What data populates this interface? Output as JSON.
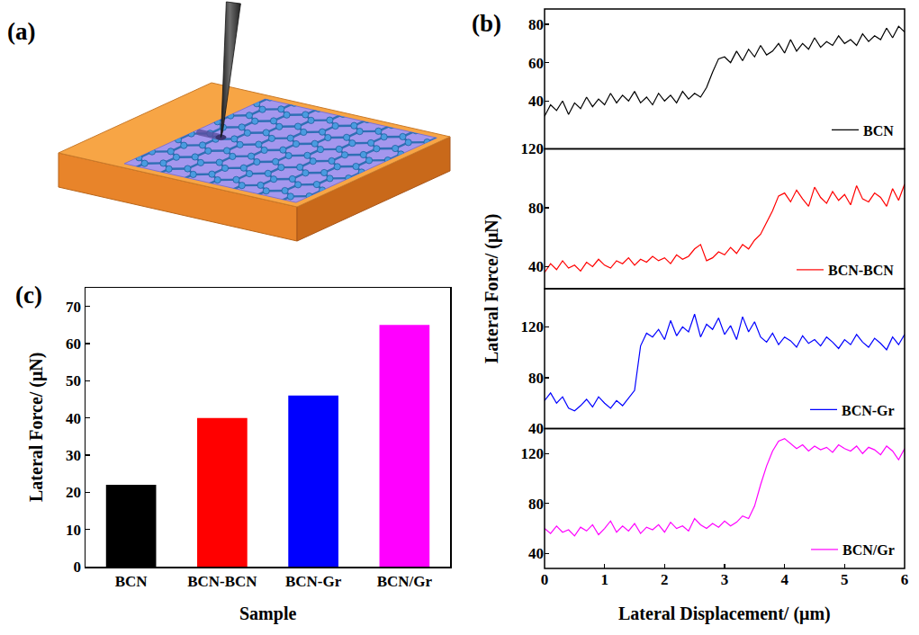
{
  "chart_data": [
    {
      "type": "diagram",
      "label": "(a)"
    },
    {
      "type": "line",
      "label": "(b)",
      "x_label": "Lateral Displacement/ (μm)",
      "y_label": "Lateral Force/ (μN)",
      "x": [
        0,
        0.1,
        0.2,
        0.3,
        0.4,
        0.5,
        0.6,
        0.7,
        0.8,
        0.9,
        1,
        1.1,
        1.2,
        1.3,
        1.4,
        1.5,
        1.6,
        1.7,
        1.8,
        1.9,
        2,
        2.1,
        2.2,
        2.3,
        2.4,
        2.5,
        2.6,
        2.7,
        2.8,
        2.9,
        3,
        3.1,
        3.2,
        3.3,
        3.4,
        3.5,
        3.6,
        3.7,
        3.8,
        3.9,
        4,
        4.1,
        4.2,
        4.3,
        4.4,
        4.5,
        4.6,
        4.7,
        4.8,
        4.9,
        5,
        5.1,
        5.2,
        5.3,
        5.4,
        5.5,
        5.6,
        5.7,
        5.8,
        5.9,
        6
      ],
      "xlim": [
        0,
        6
      ],
      "xticks": [
        0,
        1,
        2,
        3,
        4,
        5,
        6
      ],
      "legend": "lower right",
      "series": [
        {
          "name": "BCN",
          "color": "#000000",
          "ylim": [
            15,
            88
          ],
          "yticks": [
            40,
            60,
            80
          ],
          "values": [
            32,
            38,
            35,
            40,
            33,
            39,
            36,
            42,
            37,
            41,
            38,
            44,
            39,
            43,
            40,
            45,
            39,
            42,
            38,
            44,
            40,
            43,
            39,
            45,
            41,
            44,
            42,
            47,
            55,
            62,
            63,
            60,
            66,
            61,
            67,
            63,
            69,
            64,
            66,
            70,
            65,
            72,
            66,
            70,
            67,
            73,
            68,
            71,
            69,
            74,
            70,
            72,
            69,
            75,
            71,
            74,
            72,
            78,
            73,
            79,
            76
          ]
        },
        {
          "name": "BCN-BCN",
          "color": "#ff0000",
          "ylim": [
            25,
            120
          ],
          "yticks": [
            40,
            80,
            120
          ],
          "values": [
            36,
            42,
            38,
            44,
            39,
            41,
            37,
            43,
            40,
            45,
            41,
            39,
            44,
            42,
            46,
            41,
            45,
            43,
            47,
            44,
            46,
            42,
            48,
            45,
            47,
            52,
            55,
            44,
            46,
            50,
            48,
            53,
            49,
            55,
            52,
            58,
            62,
            70,
            78,
            88,
            90,
            84,
            92,
            86,
            81,
            94,
            87,
            83,
            91,
            85,
            89,
            82,
            95,
            86,
            84,
            90,
            87,
            81,
            93,
            85,
            96
          ]
        },
        {
          "name": "BCN-Gr",
          "color": "#0000ff",
          "ylim": [
            40,
            150
          ],
          "yticks": [
            40,
            80,
            120
          ],
          "values": [
            62,
            68,
            60,
            65,
            56,
            54,
            58,
            63,
            57,
            65,
            60,
            56,
            62,
            58,
            64,
            70,
            105,
            115,
            112,
            118,
            110,
            125,
            113,
            120,
            116,
            130,
            112,
            122,
            118,
            127,
            114,
            121,
            110,
            128,
            116,
            124,
            112,
            108,
            115,
            106,
            112,
            109,
            104,
            113,
            107,
            110,
            105,
            112,
            108,
            103,
            110,
            106,
            114,
            108,
            104,
            111,
            107,
            102,
            112,
            106,
            114
          ]
        },
        {
          "name": "BCN/Gr",
          "color": "#ff00ff",
          "ylim": [
            28,
            140
          ],
          "yticks": [
            40,
            80,
            120
          ],
          "values": [
            60,
            56,
            62,
            57,
            59,
            54,
            61,
            58,
            63,
            55,
            60,
            66,
            57,
            62,
            58,
            64,
            56,
            61,
            59,
            63,
            57,
            65,
            60,
            62,
            58,
            68,
            63,
            60,
            64,
            61,
            66,
            62,
            65,
            70,
            68,
            78,
            95,
            110,
            122,
            130,
            132,
            128,
            124,
            127,
            122,
            126,
            123,
            125,
            121,
            127,
            124,
            122,
            126,
            120,
            125,
            123,
            119,
            126,
            122,
            115,
            124
          ]
        }
      ]
    },
    {
      "type": "bar",
      "label": "(c)",
      "x_label": "Sample",
      "y_label": "Lateral Force/ (μN)",
      "categories": [
        "BCN",
        "BCN-BCN",
        "BCN-Gr",
        "BCN/Gr"
      ],
      "values": [
        22,
        40,
        46,
        65
      ],
      "colors": [
        "#000000",
        "#ff0000",
        "#0000ff",
        "#ff00ff"
      ],
      "ylim": [
        0,
        75
      ],
      "yticks": [
        0,
        10,
        20,
        30,
        40,
        50,
        60,
        70
      ]
    }
  ]
}
